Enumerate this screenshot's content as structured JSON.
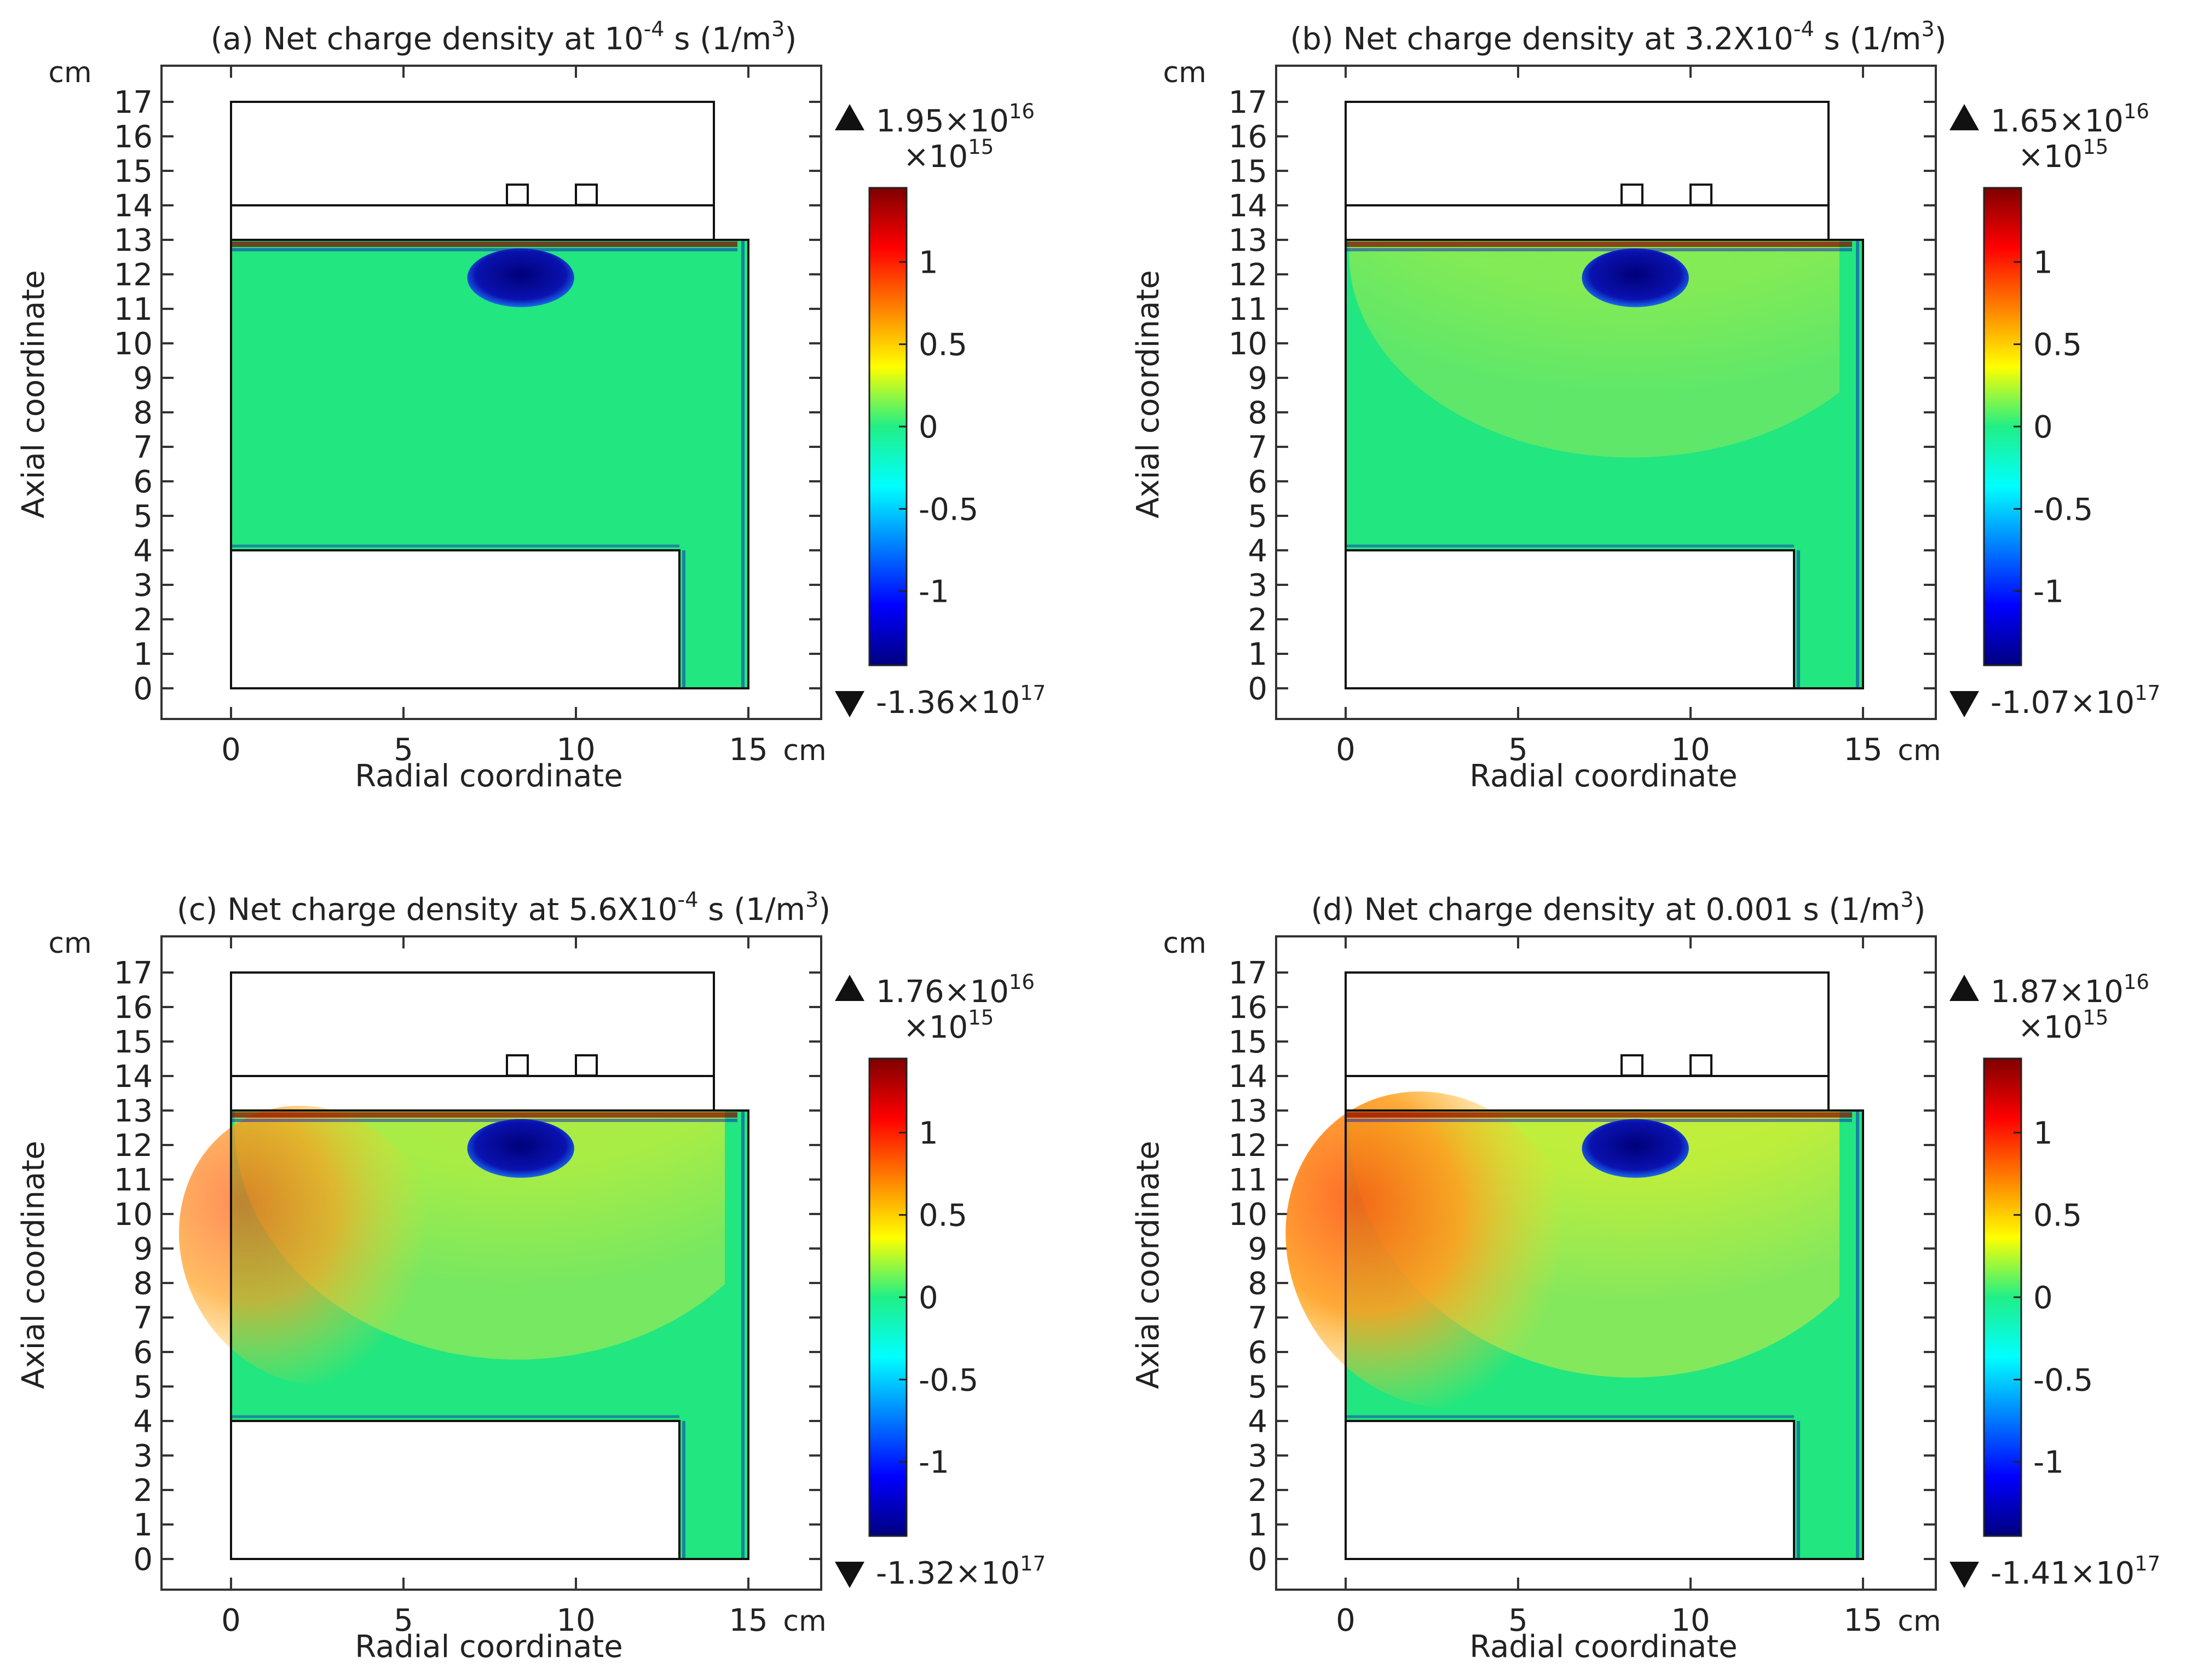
{
  "chart_data": [
    {
      "type": "heatmap",
      "panel": "a",
      "title_prefix": "(a) Net charge density at 10",
      "title_sup": "-4",
      "title_suffix": " s (1/m",
      "title_unit_sup": "3",
      "title_end": ")",
      "xlabel": "Radial coordinate",
      "ylabel": "Axial coordinate",
      "x_unit": "cm",
      "y_unit": "cm",
      "xlim": [
        -2,
        17
      ],
      "ylim": [
        -0.85,
        18.1
      ],
      "xticks": [
        0,
        5,
        10,
        15
      ],
      "yticks": [
        0,
        1,
        2,
        3,
        4,
        5,
        6,
        7,
        8,
        9,
        10,
        11,
        12,
        13,
        14,
        15,
        16,
        17
      ],
      "max_label": "1.95×10",
      "max_sup": "16",
      "min_label": "-1.36×10",
      "min_sup": "17",
      "colorbar_scale": "×10",
      "colorbar_scale_sup": "15",
      "colorbar_ticks": [
        1,
        0.5,
        0,
        -0.5,
        -1
      ],
      "colorbar_tick_labels": [
        "1",
        "0.5",
        "0",
        "-0.5",
        "-1"
      ],
      "colorbar_range": [
        -1.45,
        1.45
      ],
      "positive_intensity": 0.0,
      "hotspot": false,
      "colors": {
        "background_field": "#22e67f",
        "negative_core": "#0a0a8c",
        "positive_field": "#d8ef2a"
      }
    },
    {
      "type": "heatmap",
      "panel": "b",
      "title_prefix": "(b) Net charge density at 3.2X10",
      "title_sup": "-4",
      "title_suffix": " s (1/m",
      "title_unit_sup": "3",
      "title_end": ")",
      "xlabel": "Radial coordinate",
      "ylabel": "Axial coordinate",
      "x_unit": "cm",
      "y_unit": "cm",
      "xlim": [
        -2,
        17
      ],
      "ylim": [
        -0.85,
        18.1
      ],
      "xticks": [
        0,
        5,
        10,
        15
      ],
      "yticks": [
        0,
        1,
        2,
        3,
        4,
        5,
        6,
        7,
        8,
        9,
        10,
        11,
        12,
        13,
        14,
        15,
        16,
        17
      ],
      "max_label": "1.65×10",
      "max_sup": "16",
      "min_label": "-1.07×10",
      "min_sup": "17",
      "colorbar_scale": "×10",
      "colorbar_scale_sup": "15",
      "colorbar_ticks": [
        1,
        0.5,
        0,
        -0.5,
        -1
      ],
      "colorbar_tick_labels": [
        "1",
        "0.5",
        "0",
        "-0.5",
        "-1"
      ],
      "colorbar_range": [
        -1.45,
        1.45
      ],
      "positive_intensity": 0.35,
      "hotspot": false,
      "colors": {
        "background_field": "#22e67f",
        "negative_core": "#0a0a8c",
        "positive_field": "#c4ee35"
      }
    },
    {
      "type": "heatmap",
      "panel": "c",
      "title_prefix": "(c) Net charge density at 5.6X10",
      "title_sup": "-4",
      "title_suffix": " s (1/m",
      "title_unit_sup": "3",
      "title_end": ")",
      "xlabel": "Radial coordinate",
      "ylabel": "Axial coordinate",
      "x_unit": "cm",
      "y_unit": "cm",
      "xlim": [
        -2,
        17
      ],
      "ylim": [
        -0.85,
        18.1
      ],
      "xticks": [
        0,
        5,
        10,
        15
      ],
      "yticks": [
        0,
        1,
        2,
        3,
        4,
        5,
        6,
        7,
        8,
        9,
        10,
        11,
        12,
        13,
        14,
        15,
        16,
        17
      ],
      "max_label": "1.76×10",
      "max_sup": "16",
      "min_label": "-1.32×10",
      "min_sup": "17",
      "colorbar_scale": "×10",
      "colorbar_scale_sup": "15",
      "colorbar_ticks": [
        1,
        0.5,
        0,
        -0.5,
        -1
      ],
      "colorbar_tick_labels": [
        "1",
        "0.5",
        "0",
        "-0.5",
        "-1"
      ],
      "colorbar_range": [
        -1.45,
        1.45
      ],
      "positive_intensity": 0.7,
      "hotspot": true,
      "colors": {
        "background_field": "#22e67f",
        "negative_core": "#0a0a8c",
        "positive_field": "#e6ee2a"
      }
    },
    {
      "type": "heatmap",
      "panel": "d",
      "title_prefix": "(d) Net charge density at 0.001 s (1/m",
      "title_sup": "",
      "title_suffix": "",
      "title_unit_sup": "3",
      "title_end": ")",
      "xlabel": "Radial coordinate",
      "ylabel": "Axial coordinate",
      "x_unit": "cm",
      "y_unit": "cm",
      "xlim": [
        -2,
        17
      ],
      "ylim": [
        -0.85,
        18.1
      ],
      "xticks": [
        0,
        5,
        10,
        15
      ],
      "yticks": [
        0,
        1,
        2,
        3,
        4,
        5,
        6,
        7,
        8,
        9,
        10,
        11,
        12,
        13,
        14,
        15,
        16,
        17
      ],
      "max_label": "1.87×10",
      "max_sup": "16",
      "min_label": "-1.41×10",
      "min_sup": "17",
      "colorbar_scale": "×10",
      "colorbar_scale_sup": "15",
      "colorbar_ticks": [
        1,
        0.5,
        0,
        -0.5,
        -1
      ],
      "colorbar_tick_labels": [
        "1",
        "0.5",
        "0",
        "-0.5",
        "-1"
      ],
      "colorbar_range": [
        -1.45,
        1.45
      ],
      "positive_intensity": 0.9,
      "hotspot": true,
      "colors": {
        "background_field": "#22e67f",
        "negative_core": "#0a0a8c",
        "positive_field": "#f0ea24"
      }
    }
  ]
}
